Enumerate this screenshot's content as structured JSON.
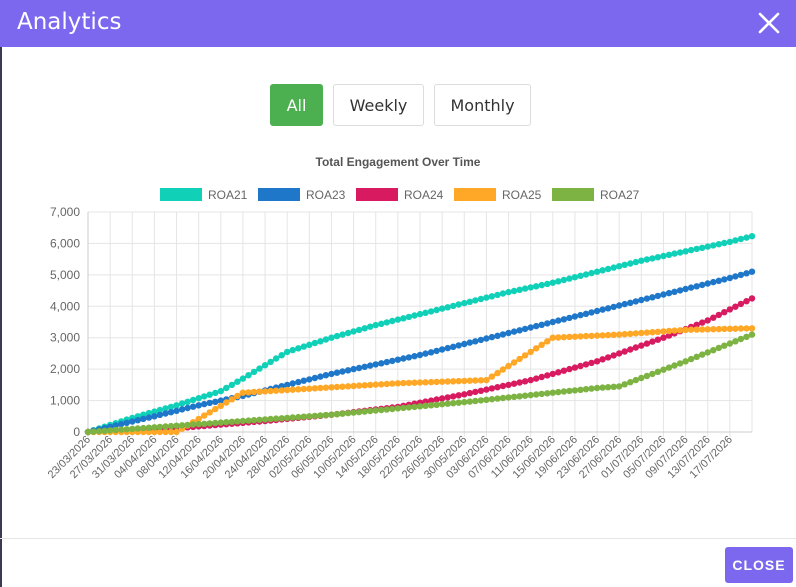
{
  "header": {
    "title": "Analytics",
    "close_icon": "close-icon",
    "color": "#7b68ee"
  },
  "range_buttons": [
    {
      "label": "All",
      "active": true
    },
    {
      "label": "Weekly",
      "active": false
    },
    {
      "label": "Monthly",
      "active": false
    }
  ],
  "footer": {
    "close_label": "CLOSE"
  },
  "chart_data": {
    "type": "line",
    "title": "Total Engagement Over Time",
    "xlabel": "",
    "ylabel": "",
    "ylim": [
      0,
      7000
    ],
    "yticks": [
      "0",
      "1,000",
      "2,000",
      "3,000",
      "4,000",
      "5,000",
      "6,000",
      "7,000"
    ],
    "grid": true,
    "legend_position": "top",
    "x_tick_labels": [
      "23/03/2026",
      "27/03/2026",
      "31/03/2026",
      "04/04/2026",
      "08/04/2026",
      "12/04/2026",
      "16/04/2026",
      "20/04/2026",
      "24/04/2026",
      "28/04/2026",
      "02/05/2026",
      "06/05/2026",
      "10/05/2026",
      "14/05/2026",
      "18/05/2026",
      "22/05/2026",
      "26/05/2026",
      "30/05/2026",
      "03/06/2026",
      "07/06/2026",
      "11/06/2026",
      "15/06/2026",
      "19/06/2026",
      "23/06/2026",
      "27/06/2026",
      "01/07/2026",
      "05/07/2026",
      "09/07/2026",
      "13/07/2026",
      "17/07/2026"
    ],
    "x_start": "23/03/2026",
    "x_end": "21/07/2026",
    "series": [
      {
        "name": "ROA21",
        "color": "#10d0b8",
        "points": [
          [
            "23/03/2026",
            0
          ],
          [
            "31/03/2026",
            450
          ],
          [
            "08/04/2026",
            850
          ],
          [
            "16/04/2026",
            1300
          ],
          [
            "20/04/2026",
            1700
          ],
          [
            "28/04/2026",
            2550
          ],
          [
            "06/05/2026",
            3000
          ],
          [
            "14/05/2026",
            3400
          ],
          [
            "22/05/2026",
            3750
          ],
          [
            "30/05/2026",
            4100
          ],
          [
            "07/06/2026",
            4450
          ],
          [
            "15/06/2026",
            4750
          ],
          [
            "23/06/2026",
            5100
          ],
          [
            "01/07/2026",
            5450
          ],
          [
            "09/07/2026",
            5750
          ],
          [
            "17/07/2026",
            6050
          ],
          [
            "21/07/2026",
            6230
          ]
        ]
      },
      {
        "name": "ROA23",
        "color": "#1f77c9",
        "points": [
          [
            "23/03/2026",
            0
          ],
          [
            "04/04/2026",
            500
          ],
          [
            "12/04/2026",
            850
          ],
          [
            "20/04/2026",
            1150
          ],
          [
            "28/04/2026",
            1500
          ],
          [
            "06/05/2026",
            1850
          ],
          [
            "14/05/2026",
            2150
          ],
          [
            "22/05/2026",
            2450
          ],
          [
            "30/05/2026",
            2800
          ],
          [
            "07/06/2026",
            3150
          ],
          [
            "15/06/2026",
            3500
          ],
          [
            "23/06/2026",
            3850
          ],
          [
            "01/07/2026",
            4200
          ],
          [
            "09/07/2026",
            4550
          ],
          [
            "17/07/2026",
            4900
          ],
          [
            "21/07/2026",
            5100
          ]
        ]
      },
      {
        "name": "ROA24",
        "color": "#d81b60",
        "points": [
          [
            "23/03/2026",
            0
          ],
          [
            "08/04/2026",
            120
          ],
          [
            "24/04/2026",
            350
          ],
          [
            "06/05/2026",
            550
          ],
          [
            "18/05/2026",
            800
          ],
          [
            "30/05/2026",
            1200
          ],
          [
            "11/06/2026",
            1650
          ],
          [
            "23/06/2026",
            2250
          ],
          [
            "05/07/2026",
            3000
          ],
          [
            "13/07/2026",
            3550
          ],
          [
            "21/07/2026",
            4250
          ]
        ]
      },
      {
        "name": "ROA25",
        "color": "#ffa726",
        "points": [
          [
            "23/03/2026",
            0
          ],
          [
            "08/04/2026",
            0
          ],
          [
            "20/04/2026",
            1250
          ],
          [
            "04/05/2026",
            1400
          ],
          [
            "18/05/2026",
            1550
          ],
          [
            "03/06/2026",
            1650
          ],
          [
            "15/06/2026",
            3000
          ],
          [
            "27/06/2026",
            3100
          ],
          [
            "09/07/2026",
            3250
          ],
          [
            "21/07/2026",
            3300
          ]
        ]
      },
      {
        "name": "ROA27",
        "color": "#7cb342",
        "points": [
          [
            "23/03/2026",
            0
          ],
          [
            "12/04/2026",
            250
          ],
          [
            "06/05/2026",
            550
          ],
          [
            "30/05/2026",
            950
          ],
          [
            "23/06/2026",
            1400
          ],
          [
            "27/06/2026",
            1450
          ],
          [
            "09/07/2026",
            2250
          ],
          [
            "21/07/2026",
            3100
          ]
        ]
      }
    ]
  }
}
